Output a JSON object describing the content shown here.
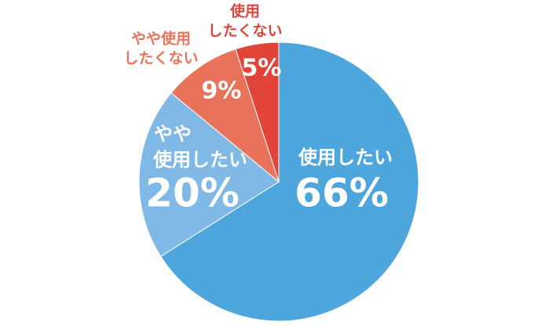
{
  "chart_data": {
    "type": "pie",
    "categories": [
      [
        "使用したい"
      ],
      [
        "やや",
        "使用したい"
      ],
      [
        "やや使用",
        "したくない"
      ],
      [
        "使用",
        "したくない"
      ]
    ],
    "values": [
      66,
      20,
      9,
      5
    ],
    "value_labels": [
      "66%",
      "20%",
      "9%",
      "5%"
    ],
    "colors": [
      "#4da6dc",
      "#80b8e6",
      "#e9735a",
      "#e2443a"
    ]
  }
}
